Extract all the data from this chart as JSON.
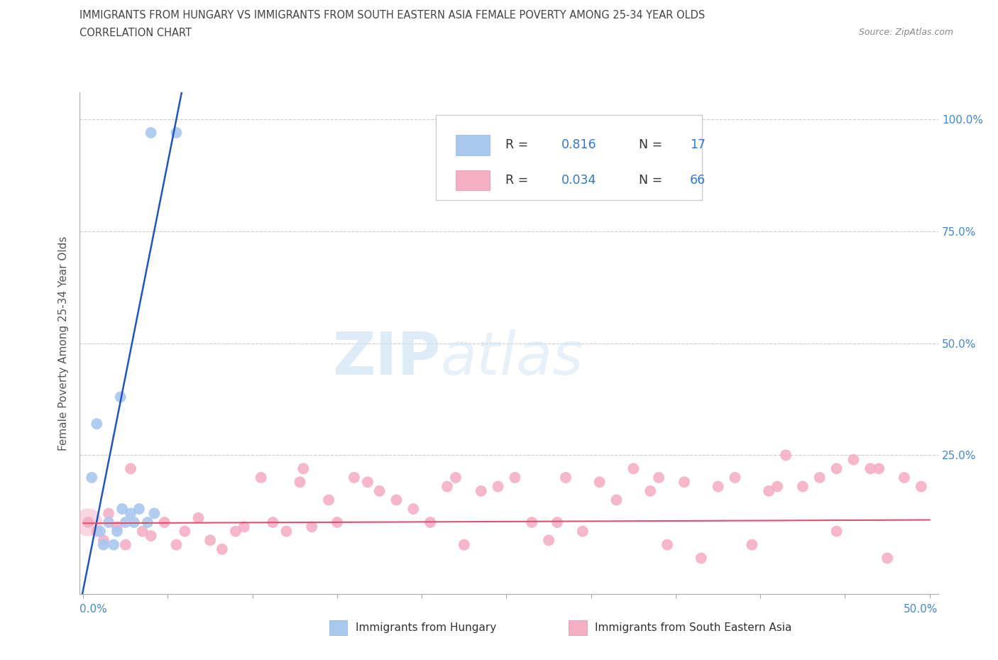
{
  "title_line1": "IMMIGRANTS FROM HUNGARY VS IMMIGRANTS FROM SOUTH EASTERN ASIA FEMALE POVERTY AMONG 25-34 YEAR OLDS",
  "title_line2": "CORRELATION CHART",
  "source": "Source: ZipAtlas.com",
  "ylabel": "Female Poverty Among 25-34 Year Olds",
  "legend_R1": "0.816",
  "legend_N1": "17",
  "legend_R2": "0.034",
  "legend_N2": "66",
  "hungary_color": "#a8c8f0",
  "sea_color": "#f4afc4",
  "hungary_line_color": "#2255bb",
  "sea_line_color": "#e05070",
  "grid_color": "#cccccc",
  "watermark_zip": "ZIP",
  "watermark_atlas": "atlas",
  "hungary_points_x": [
    0.022,
    0.04,
    0.055,
    0.005,
    0.008,
    0.01,
    0.012,
    0.015,
    0.018,
    0.02,
    0.023,
    0.025,
    0.028,
    0.03,
    0.033,
    0.038,
    0.042
  ],
  "hungary_points_y": [
    0.38,
    0.97,
    0.97,
    0.2,
    0.32,
    0.08,
    0.05,
    0.1,
    0.05,
    0.08,
    0.13,
    0.1,
    0.12,
    0.1,
    0.13,
    0.1,
    0.12
  ],
  "sea_points_x": [
    0.003,
    0.008,
    0.012,
    0.015,
    0.02,
    0.025,
    0.028,
    0.035,
    0.04,
    0.048,
    0.055,
    0.06,
    0.068,
    0.075,
    0.082,
    0.09,
    0.095,
    0.105,
    0.112,
    0.12,
    0.128,
    0.135,
    0.145,
    0.15,
    0.16,
    0.168,
    0.175,
    0.185,
    0.195,
    0.205,
    0.215,
    0.225,
    0.235,
    0.245,
    0.255,
    0.265,
    0.275,
    0.285,
    0.295,
    0.305,
    0.315,
    0.325,
    0.335,
    0.345,
    0.355,
    0.365,
    0.375,
    0.385,
    0.395,
    0.405,
    0.415,
    0.425,
    0.435,
    0.445,
    0.455,
    0.465,
    0.475,
    0.485,
    0.495,
    0.445,
    0.34,
    0.28,
    0.22,
    0.13,
    0.41,
    0.47
  ],
  "sea_points_y": [
    0.1,
    0.08,
    0.06,
    0.12,
    0.09,
    0.05,
    0.22,
    0.08,
    0.07,
    0.1,
    0.05,
    0.08,
    0.11,
    0.06,
    0.04,
    0.08,
    0.09,
    0.2,
    0.1,
    0.08,
    0.19,
    0.09,
    0.15,
    0.1,
    0.2,
    0.19,
    0.17,
    0.15,
    0.13,
    0.1,
    0.18,
    0.05,
    0.17,
    0.18,
    0.2,
    0.1,
    0.06,
    0.2,
    0.08,
    0.19,
    0.15,
    0.22,
    0.17,
    0.05,
    0.19,
    0.02,
    0.18,
    0.2,
    0.05,
    0.17,
    0.25,
    0.18,
    0.2,
    0.22,
    0.24,
    0.22,
    0.02,
    0.2,
    0.18,
    0.08,
    0.2,
    0.1,
    0.2,
    0.22,
    0.18,
    0.22
  ],
  "xmin": 0.0,
  "xmax": 0.5,
  "ymin": 0.0,
  "ymax": 1.0,
  "y_ticks": [
    0.0,
    0.25,
    0.5,
    0.75,
    1.0
  ],
  "y_tick_labels": [
    "",
    "25.0%",
    "50.0%",
    "75.0%",
    "100.0%"
  ],
  "x_tick_labels_bottom": [
    "0.0%",
    "50.0%"
  ]
}
